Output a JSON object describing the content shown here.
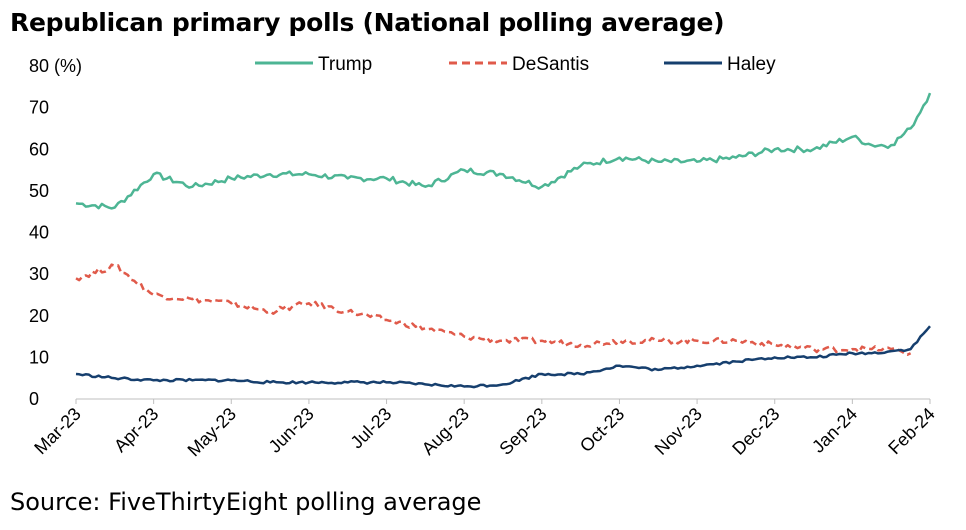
{
  "title": "Republican primary polls (National polling average)",
  "source": "Source: FiveThirtyEight polling average",
  "chart_data": {
    "type": "line",
    "ylabel_unit": "(%)",
    "ylim": [
      0,
      80
    ],
    "yticks": [
      0,
      10,
      20,
      30,
      40,
      50,
      60,
      70,
      80
    ],
    "ytick_labels": [
      "0",
      "10",
      "20",
      "30",
      "40",
      "50",
      "60",
      "70",
      "80 (%)"
    ],
    "x": [
      "Mar-23",
      "Mar-23 +0.5",
      "Apr-23",
      "Apr-23 +0.5",
      "May-23",
      "May-23 +0.5",
      "Jun-23",
      "Jun-23 +0.5",
      "Jul-23",
      "Jul-23 +0.5",
      "Aug-23",
      "Aug-23 +0.5",
      "Sep-23",
      "Sep-23 +0.5",
      "Oct-23",
      "Oct-23 +0.5",
      "Nov-23",
      "Nov-23 +0.5",
      "Dec-23",
      "Dec-23 +0.5",
      "Jan-24",
      "Jan-24 +0.25",
      "Jan-24 +0.5",
      "Jan-24 +0.75",
      "Feb-24"
    ],
    "x_months": [
      0,
      0.5,
      1,
      1.5,
      2,
      2.5,
      3,
      3.5,
      4,
      4.5,
      5,
      5.5,
      6,
      6.5,
      7,
      7.5,
      8,
      8.5,
      9,
      9.5,
      10,
      10.25,
      10.5,
      10.75,
      11
    ],
    "xtick_labels": [
      "Mar-23",
      "Apr-23",
      "May-23",
      "Jun-23",
      "Jul-23",
      "Aug-23",
      "Sep-23",
      "Oct-23",
      "Nov-23",
      "Dec-23",
      "Jan-24",
      "Feb-24"
    ],
    "legend_position": "top",
    "grid": false,
    "series": [
      {
        "name": "Trump",
        "color": "#4db594",
        "dash": "solid",
        "values": [
          47,
          46,
          54,
          51,
          53,
          54,
          54,
          53,
          53,
          51,
          55,
          54,
          51,
          56,
          58,
          57,
          57,
          58,
          60,
          60,
          63,
          61,
          61,
          65,
          73.5
        ]
      },
      {
        "name": "DeSantis",
        "color": "#e05a4a",
        "dash": "dashed",
        "values": [
          29,
          32,
          25,
          24,
          23,
          21,
          23,
          21,
          19,
          17,
          15,
          14,
          14,
          13,
          14,
          14,
          14,
          14,
          13,
          12,
          12,
          12,
          12,
          11,
          null
        ]
      },
      {
        "name": "Haley",
        "color": "#163f6e",
        "dash": "solid",
        "values": [
          6,
          5,
          4.5,
          4.5,
          4.5,
          4,
          4,
          4,
          4,
          3.5,
          3,
          3.5,
          6,
          6,
          8,
          7,
          8,
          9,
          10,
          10,
          11,
          11,
          11.5,
          12,
          17.5
        ]
      }
    ]
  }
}
